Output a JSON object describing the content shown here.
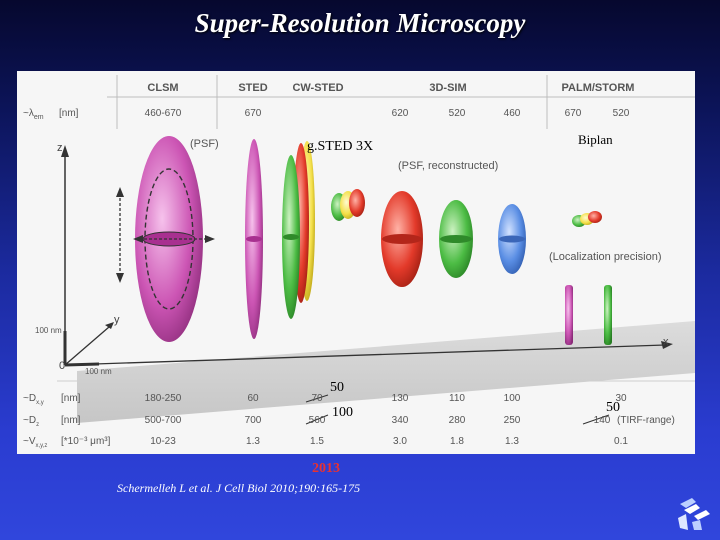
{
  "slide": {
    "title": "Super-Resolution Microscopy"
  },
  "figure": {
    "methods": [
      "CLSM",
      "STED",
      "CW-STED",
      "3D-SIM",
      "PALM/STORM"
    ],
    "lambda_label": "~λ",
    "lambda_sub": "em",
    "lambda_unit": "[nm]",
    "lambda_values": [
      "460-670",
      "670",
      "",
      "620",
      "520",
      "460",
      "670",
      "520"
    ],
    "axis_z": "z",
    "axis_y": "y",
    "axis_x": "x",
    "scale_y": "100 nm",
    "scale_x": "100 nm",
    "origin": "0",
    "psf_label": "(PSF)",
    "psf_reconstructed_label": "(PSF, reconstructed)",
    "localization_label": "(Localization precision)",
    "rows": [
      {
        "sym": "~D",
        "sub": "x,y",
        "unit": "[nm]",
        "values": [
          "180-250",
          "60",
          "70",
          "130",
          "110",
          "100",
          "30"
        ]
      },
      {
        "sym": "~D",
        "sub": "z",
        "unit": "[nm]",
        "values": [
          "500-700",
          "700",
          "560",
          "340",
          "280",
          "250",
          "140"
        ],
        "note": "(TIRF-range)"
      },
      {
        "sym": "~V",
        "sub": "x,y,z",
        "unit": "[*10⁻³ μm³]",
        "values": [
          "10-23",
          "1.3",
          "1.5",
          "3.0",
          "1.8",
          "1.3",
          "0.1"
        ]
      }
    ]
  },
  "annotations": {
    "gsted": "g.STED 3X",
    "biplan": "Biplan",
    "replace_dxy": "50",
    "replace_dz": "100",
    "replace_palm": "50"
  },
  "year": "2013",
  "citation": "Schermelleh L et al. J Cell Biol 2010;190:165-175",
  "colors": {
    "background": "#1b2a9e",
    "title": "#ffffff",
    "year": "#e83232",
    "citation": "#ffffff"
  },
  "icons": [
    "logo-icon"
  ]
}
